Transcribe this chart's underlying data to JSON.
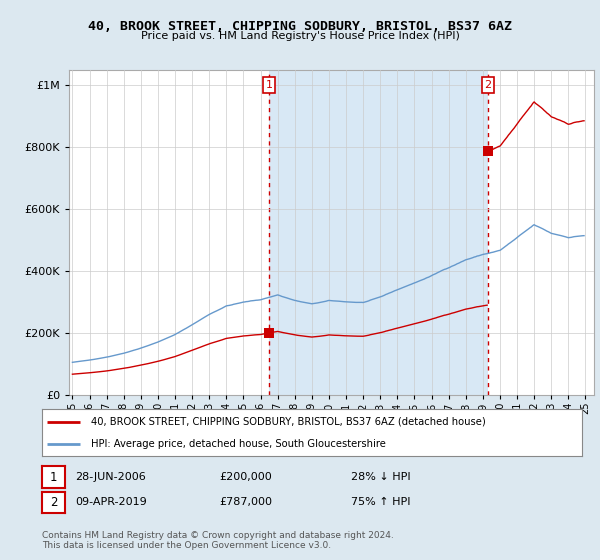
{
  "title": "40, BROOK STREET, CHIPPING SODBURY, BRISTOL, BS37 6AZ",
  "subtitle": "Price paid vs. HM Land Registry's House Price Index (HPI)",
  "legend_entry1": "40, BROOK STREET, CHIPPING SODBURY, BRISTOL, BS37 6AZ (detached house)",
  "legend_entry2": "HPI: Average price, detached house, South Gloucestershire",
  "sale1_date": "28-JUN-2006",
  "sale1_price": 200000,
  "sale1_label": "£200,000",
  "sale1_hpi": "28% ↓ HPI",
  "sale2_date": "09-APR-2019",
  "sale2_price": 787000,
  "sale2_label": "£787,000",
  "sale2_hpi": "75% ↑ HPI",
  "footer": "Contains HM Land Registry data © Crown copyright and database right 2024.\nThis data is licensed under the Open Government Licence v3.0.",
  "hpi_color": "#6699cc",
  "price_color": "#cc0000",
  "background_color": "#dce8f0",
  "plot_bg_color": "#ffffff",
  "shade_color": "#d8e8f5",
  "vline_color": "#cc0000",
  "ylim": [
    0,
    1050000
  ],
  "yticks": [
    0,
    200000,
    400000,
    600000,
    800000,
    1000000
  ],
  "sale1_x": 2006.5,
  "sale2_x": 2019.3,
  "xmin": 1994.8,
  "xmax": 2025.5
}
